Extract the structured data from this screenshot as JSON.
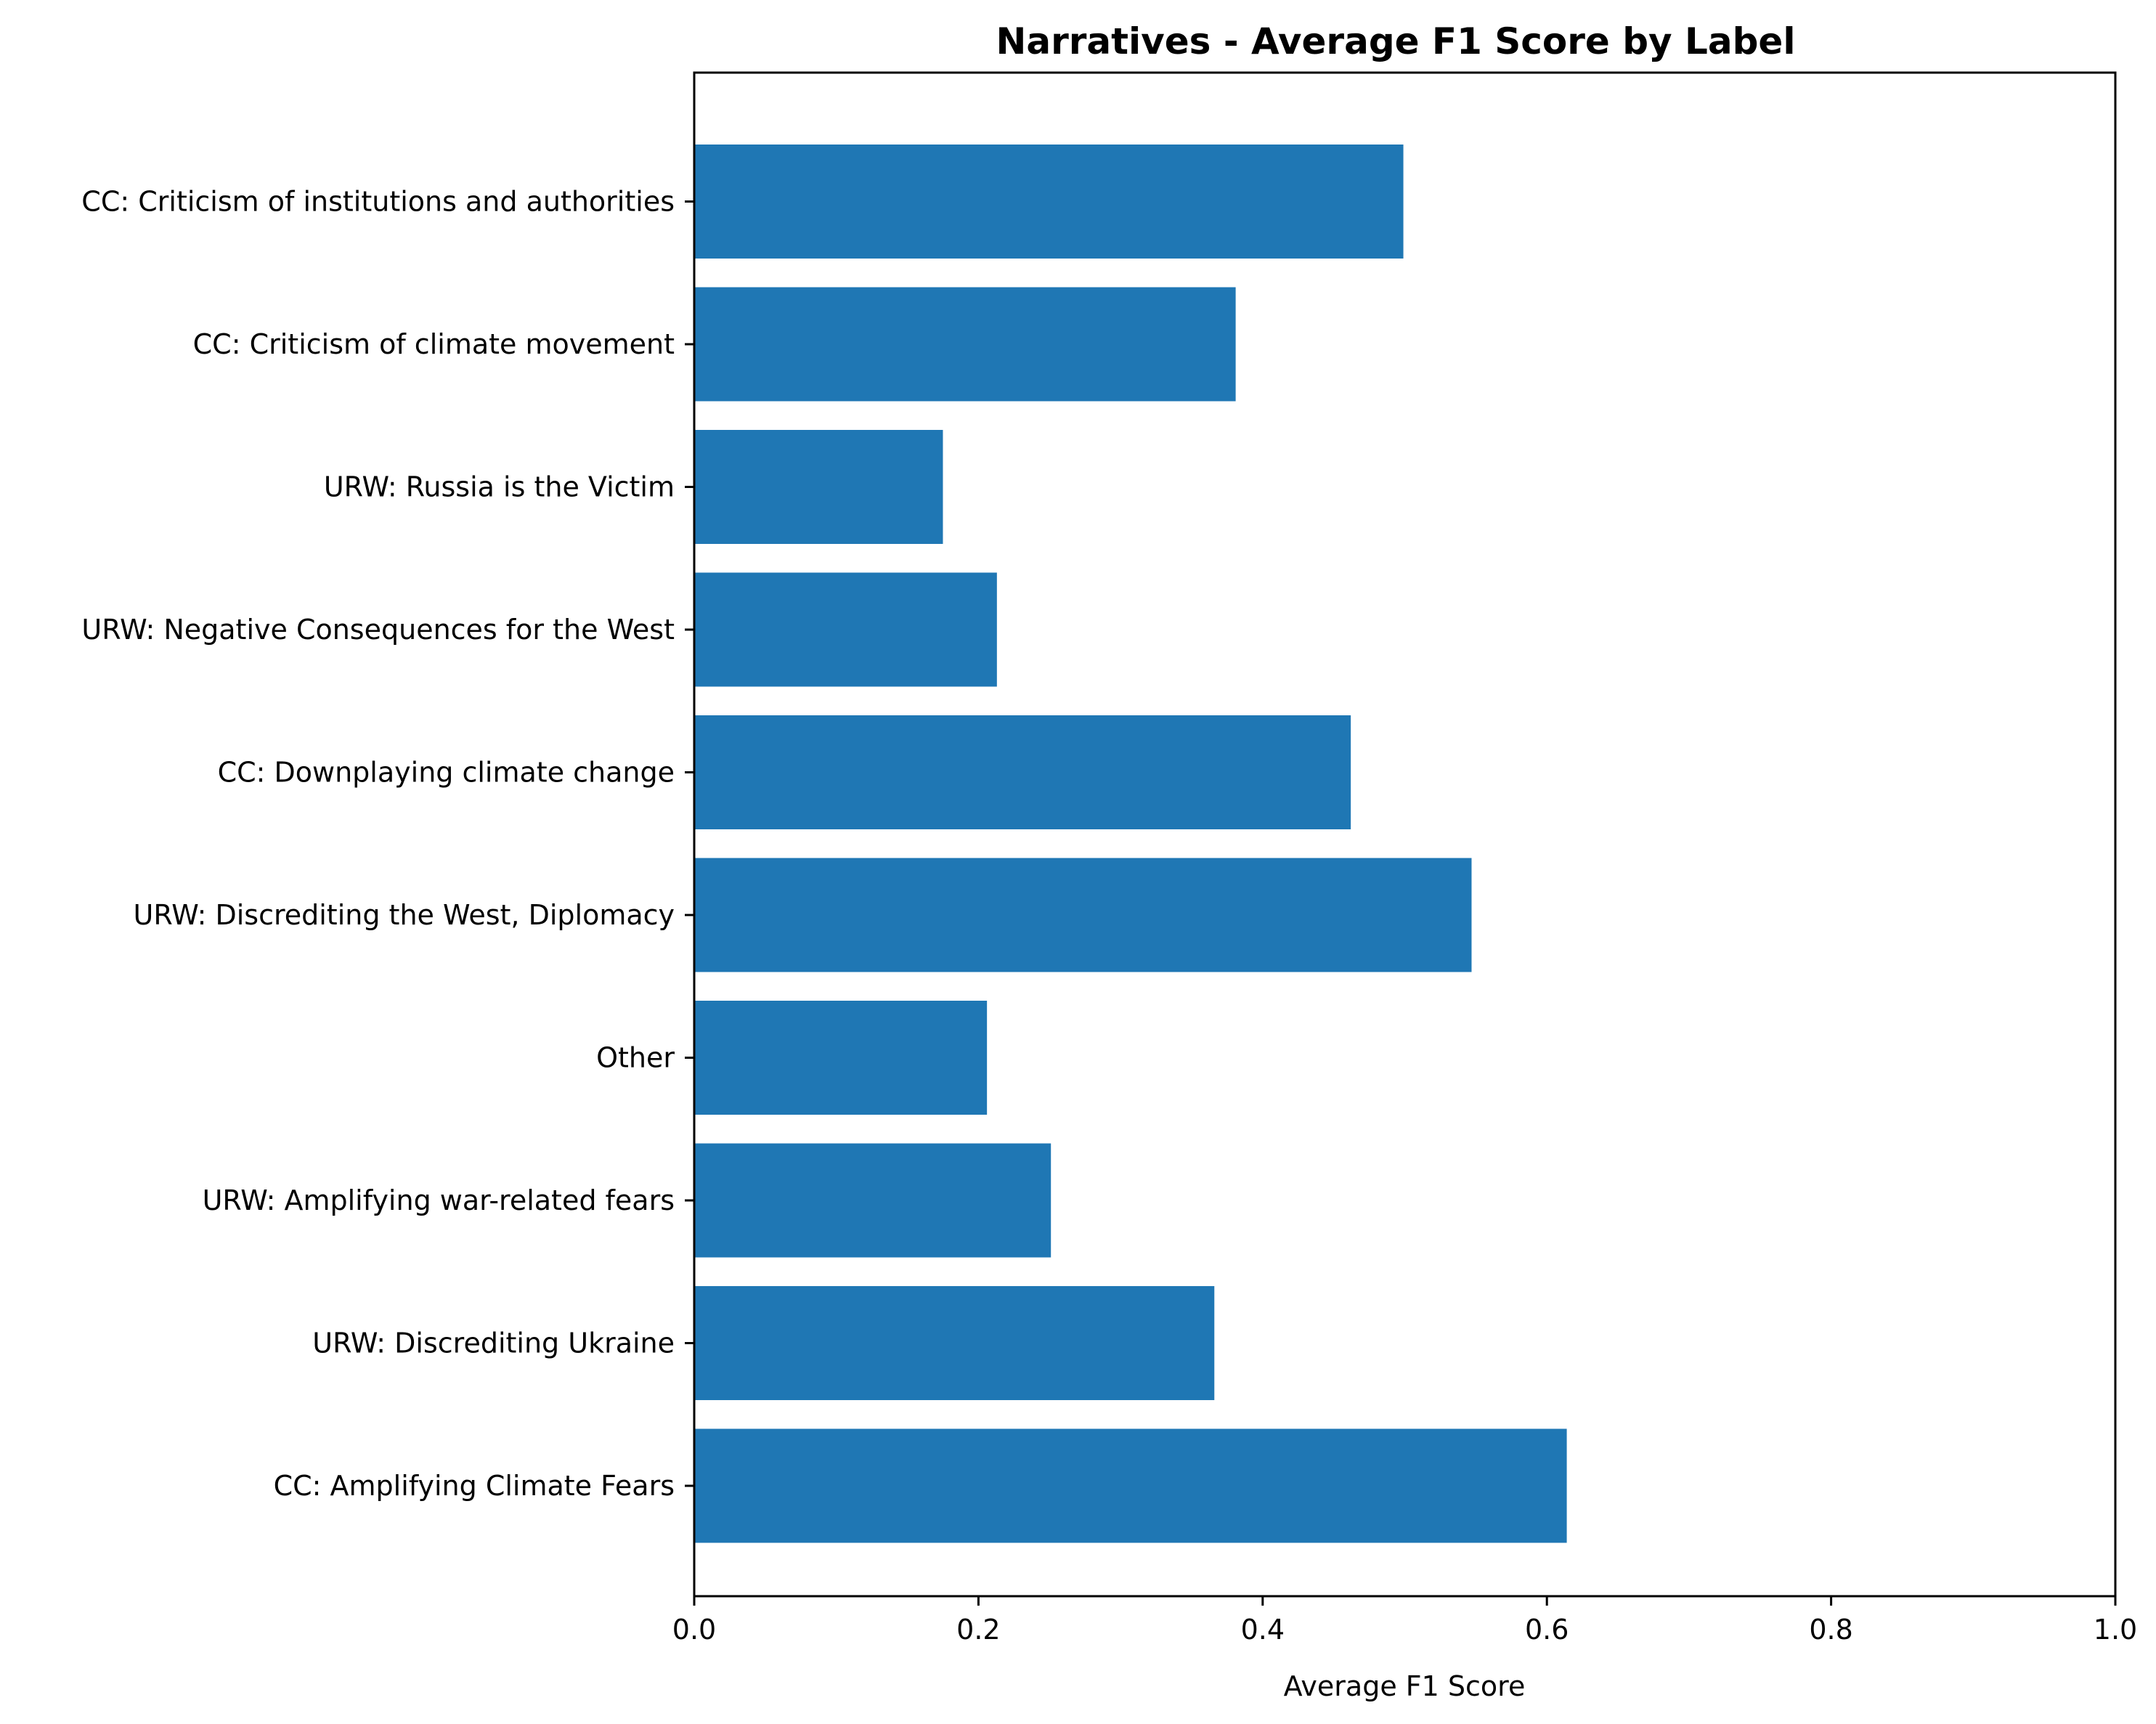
{
  "chart_data": {
    "type": "bar",
    "orientation": "horizontal",
    "title": "Narratives - Average F1 Score by Label",
    "xlabel": "Average F1 Score",
    "ylabel": "",
    "xlim": [
      0,
      1.0
    ],
    "x_ticks": [
      "0.0",
      "0.2",
      "0.4",
      "0.6",
      "0.8",
      "1.0"
    ],
    "x_tick_values": [
      0,
      0.2,
      0.4,
      0.6,
      0.8,
      1.0
    ],
    "grid": false,
    "legend": "none",
    "bar_color": "#1f77b4",
    "categories": [
      "CC: Amplifying Climate Fears",
      "URW: Discrediting Ukraine",
      "URW: Amplifying war-related fears",
      "Other",
      "URW: Discrediting the West, Diplomacy",
      "CC: Downplaying climate change",
      "URW: Negative Consequences for the West",
      "URW: Russia is the Victim",
      "CC: Criticism of climate movement",
      "CC: Criticism of institutions and authorities"
    ],
    "values": [
      0.614,
      0.366,
      0.251,
      0.206,
      0.547,
      0.462,
      0.213,
      0.175,
      0.381,
      0.499
    ]
  }
}
